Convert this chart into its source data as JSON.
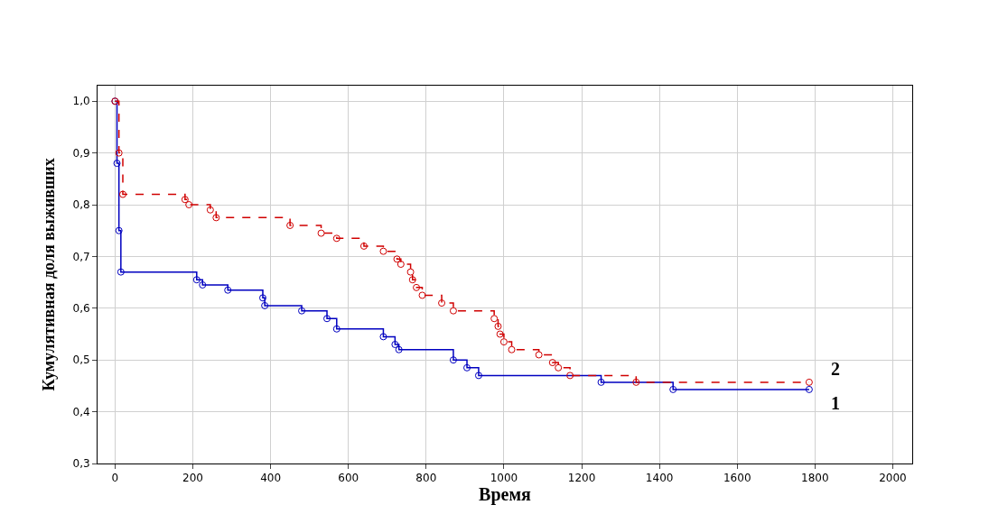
{
  "chart_data": {
    "type": "step",
    "xlabel": "Время",
    "ylabel": "Кумулятивная доля выживших",
    "series": [
      {
        "name": "1",
        "color": "#0000c0",
        "line_style": "solid",
        "x": [
          0,
          5,
          10,
          15,
          210,
          225,
          290,
          380,
          385,
          480,
          545,
          570,
          690,
          720,
          730,
          870,
          905,
          935,
          1250,
          1435,
          1785
        ],
        "values": [
          1.0,
          0.88,
          0.75,
          0.67,
          0.655,
          0.645,
          0.635,
          0.62,
          0.605,
          0.595,
          0.58,
          0.56,
          0.545,
          0.53,
          0.52,
          0.5,
          0.485,
          0.47,
          0.457,
          0.443,
          0.443
        ]
      },
      {
        "name": "2",
        "color": "#d00000",
        "line_style": "dashed",
        "x": [
          0,
          10,
          20,
          180,
          190,
          245,
          260,
          450,
          530,
          570,
          640,
          690,
          725,
          735,
          760,
          765,
          775,
          790,
          840,
          870,
          975,
          985,
          990,
          1000,
          1020,
          1090,
          1125,
          1140,
          1170,
          1340,
          1785
        ],
        "values": [
          1.0,
          0.9,
          0.82,
          0.81,
          0.8,
          0.79,
          0.775,
          0.76,
          0.745,
          0.735,
          0.72,
          0.71,
          0.695,
          0.685,
          0.67,
          0.655,
          0.64,
          0.625,
          0.61,
          0.595,
          0.58,
          0.565,
          0.55,
          0.535,
          0.52,
          0.51,
          0.495,
          0.485,
          0.47,
          0.457,
          0.457
        ]
      }
    ],
    "xlim": [
      -45,
      2050
    ],
    "ylim": [
      0.3,
      1.03
    ],
    "xticks": [
      0,
      200,
      400,
      600,
      800,
      1000,
      1200,
      1400,
      1600,
      1800,
      2000
    ],
    "yticks": [
      {
        "value": 0.3,
        "label": "0,3"
      },
      {
        "value": 0.4,
        "label": "0,4"
      },
      {
        "value": 0.5,
        "label": "0,5"
      },
      {
        "value": 0.6,
        "label": "0,6"
      },
      {
        "value": 0.7,
        "label": "0,7"
      },
      {
        "value": 0.8,
        "label": "0,8"
      },
      {
        "value": 0.9,
        "label": "0,9"
      },
      {
        "value": 1.0,
        "label": "1,0"
      }
    ],
    "grid": true,
    "marker": "circle"
  }
}
